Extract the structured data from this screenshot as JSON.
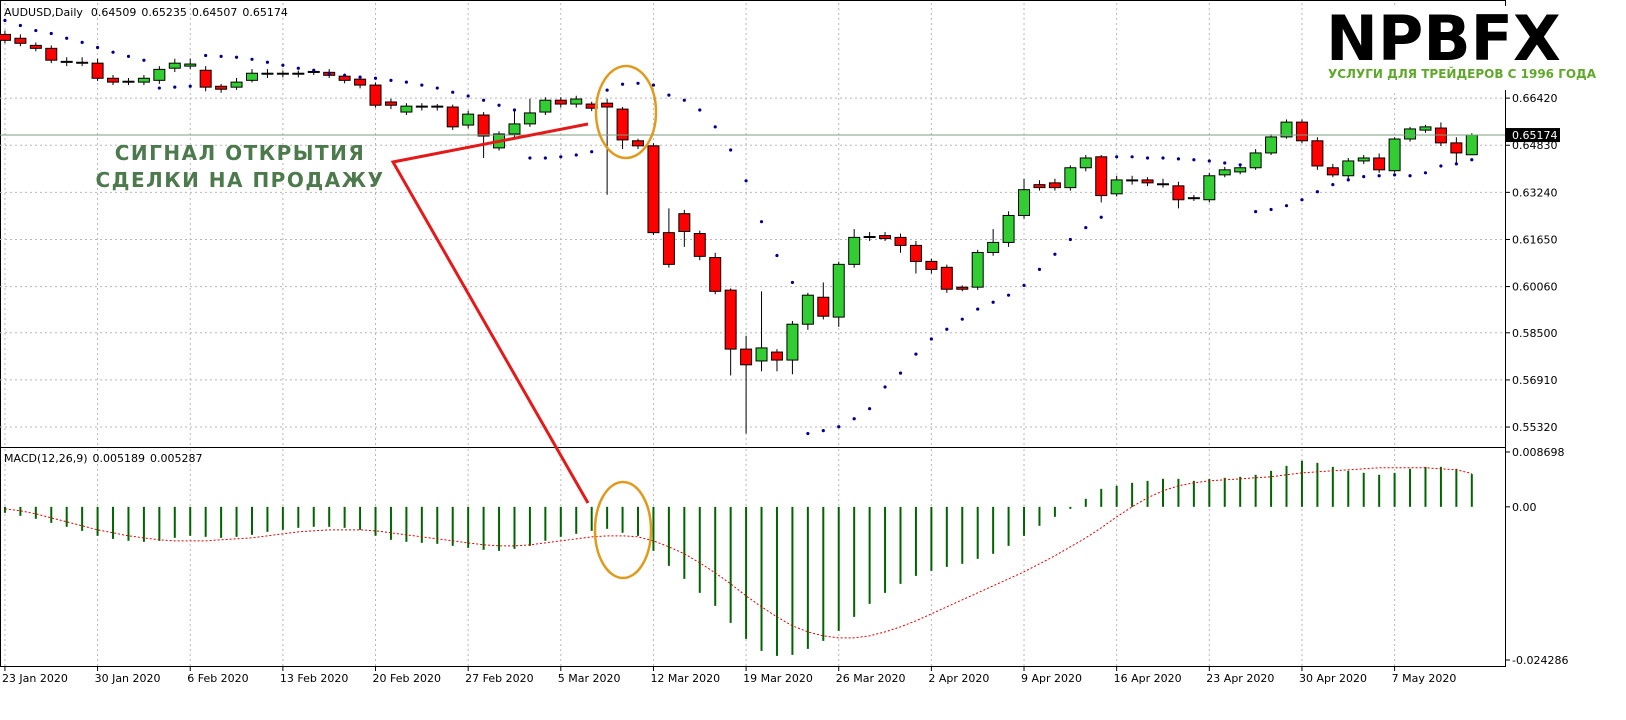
{
  "chart_data": [
    {
      "type": "candlestick",
      "title": "AUDUSD,Daily",
      "xlim": [
        -0.32,
        97.15
      ],
      "xticks": [
        {
          "value": 0,
          "label": "23 Jan 2020"
        },
        {
          "value": 6,
          "label": "30 Jan 2020"
        },
        {
          "value": 12,
          "label": "6 Feb 2020"
        },
        {
          "value": 18,
          "label": "13 Feb 2020"
        },
        {
          "value": 24,
          "label": "20 Feb 2020"
        },
        {
          "value": 30,
          "label": "27 Feb 2020"
        },
        {
          "value": 36,
          "label": "5 Mar 2020"
        },
        {
          "value": 42,
          "label": "12 Mar 2020"
        },
        {
          "value": 48,
          "label": "19 Mar 2020"
        },
        {
          "value": 54,
          "label": "26 Mar 2020"
        },
        {
          "value": 60,
          "label": "2 Apr 2020"
        },
        {
          "value": 66,
          "label": "9 Apr 2020"
        },
        {
          "value": 72,
          "label": "16 Apr 2020"
        },
        {
          "value": 78,
          "label": "23 Apr 2020"
        },
        {
          "value": 84,
          "label": "30 Apr 2020"
        },
        {
          "value": 90,
          "label": "7 May 2020"
        }
      ],
      "ylim": [
        0.5468,
        0.6963
      ],
      "yticks": [
        {
          "value": 0.6642,
          "label": "0.66420"
        },
        {
          "value": 0.6483,
          "label": "0.64830"
        },
        {
          "value": 0.6324,
          "label": "0.63240"
        },
        {
          "value": 0.6165,
          "label": "0.61650"
        },
        {
          "value": 0.6006,
          "label": "0.60060"
        },
        {
          "value": 0.585,
          "label": "0.58500"
        },
        {
          "value": 0.5691,
          "label": "0.56910"
        },
        {
          "value": 0.5532,
          "label": "0.55320"
        }
      ],
      "grid": true,
      "up_color": "#32cd32",
      "down_color": "#ff0000",
      "open": [
        0.6857,
        0.6844,
        0.682,
        0.681,
        0.6766,
        0.6763,
        0.676,
        0.6709,
        0.6696,
        0.6696,
        0.6702,
        0.6743,
        0.675,
        0.6736,
        0.6682,
        0.6679,
        0.6702,
        0.6723,
        0.6726,
        0.6723,
        0.6729,
        0.6729,
        0.6716,
        0.6706,
        0.6686,
        0.6629,
        0.6595,
        0.6615,
        0.6612,
        0.6612,
        0.6551,
        0.6585,
        0.6474,
        0.6521,
        0.6555,
        0.6595,
        0.6635,
        0.6622,
        0.6622,
        0.6625,
        0.6605,
        0.6498,
        0.6481,
        0.6188,
        0.6252,
        0.6185,
        0.6104,
        0.5994,
        0.5795,
        0.5755,
        0.5785,
        0.5758,
        0.5879,
        0.597,
        0.5903,
        0.6081,
        0.6172,
        0.6178,
        0.6172,
        0.6145,
        0.6091,
        0.6071,
        0.6004,
        0.6004,
        0.6121,
        0.6155,
        0.6246,
        0.635,
        0.6356,
        0.634,
        0.6407,
        0.6444,
        0.6319,
        0.6363,
        0.6366,
        0.635,
        0.6346,
        0.6303,
        0.6299,
        0.6383,
        0.6393,
        0.6407,
        0.6457,
        0.6511,
        0.6561,
        0.6498,
        0.6407,
        0.638,
        0.643,
        0.644,
        0.6397,
        0.6504,
        0.6534,
        0.6541,
        0.6491,
        0.64509
      ],
      "high": [
        0.687,
        0.6857,
        0.683,
        0.682,
        0.678,
        0.678,
        0.6775,
        0.672,
        0.671,
        0.672,
        0.675,
        0.6775,
        0.6775,
        0.675,
        0.669,
        0.671,
        0.674,
        0.674,
        0.6735,
        0.6735,
        0.674,
        0.674,
        0.6725,
        0.6715,
        0.6695,
        0.664,
        0.6625,
        0.6625,
        0.6622,
        0.662,
        0.66,
        0.6595,
        0.653,
        0.66,
        0.664,
        0.6645,
        0.6645,
        0.665,
        0.663,
        0.664,
        0.6612,
        0.6505,
        0.649,
        0.627,
        0.6265,
        0.6195,
        0.612,
        0.6,
        0.584,
        0.599,
        0.5795,
        0.589,
        0.5985,
        0.602,
        0.609,
        0.62,
        0.619,
        0.619,
        0.6185,
        0.616,
        0.61,
        0.608,
        0.601,
        0.613,
        0.62,
        0.626,
        0.637,
        0.6365,
        0.637,
        0.6415,
        0.645,
        0.645,
        0.638,
        0.638,
        0.6375,
        0.637,
        0.636,
        0.6315,
        0.639,
        0.641,
        0.6415,
        0.647,
        0.652,
        0.657,
        0.657,
        0.651,
        0.642,
        0.644,
        0.645,
        0.6455,
        0.651,
        0.6545,
        0.6552,
        0.656,
        0.651,
        0.65235
      ],
      "low": [
        0.6827,
        0.6817,
        0.68,
        0.676,
        0.675,
        0.675,
        0.67,
        0.6686,
        0.6686,
        0.6686,
        0.669,
        0.673,
        0.674,
        0.6665,
        0.666,
        0.667,
        0.6695,
        0.671,
        0.6712,
        0.6712,
        0.672,
        0.671,
        0.6692,
        0.6675,
        0.661,
        0.6605,
        0.6585,
        0.66,
        0.66,
        0.6535,
        0.654,
        0.644,
        0.6465,
        0.651,
        0.6545,
        0.6585,
        0.661,
        0.661,
        0.6598,
        0.6316,
        0.647,
        0.647,
        0.618,
        0.607,
        0.614,
        0.6095,
        0.598,
        0.5706,
        0.551,
        0.572,
        0.572,
        0.571,
        0.586,
        0.5895,
        0.587,
        0.607,
        0.616,
        0.616,
        0.612,
        0.605,
        0.605,
        0.5985,
        0.599,
        0.5995,
        0.611,
        0.614,
        0.6235,
        0.633,
        0.633,
        0.633,
        0.6395,
        0.629,
        0.631,
        0.635,
        0.6345,
        0.634,
        0.627,
        0.6295,
        0.629,
        0.6375,
        0.6385,
        0.64,
        0.645,
        0.6505,
        0.649,
        0.64,
        0.6375,
        0.637,
        0.642,
        0.639,
        0.639,
        0.6495,
        0.6525,
        0.648,
        0.642,
        0.64507
      ],
      "close": [
        0.6837,
        0.6827,
        0.681,
        0.677,
        0.6763,
        0.676,
        0.6709,
        0.6696,
        0.6699,
        0.6709,
        0.6739,
        0.676,
        0.6757,
        0.6679,
        0.6672,
        0.6696,
        0.6726,
        0.6726,
        0.6723,
        0.6726,
        0.6732,
        0.6719,
        0.6702,
        0.6686,
        0.6618,
        0.6618,
        0.6615,
        0.6612,
        0.6615,
        0.6545,
        0.6588,
        0.6514,
        0.6521,
        0.6555,
        0.6592,
        0.6635,
        0.6622,
        0.6639,
        0.6608,
        0.6612,
        0.6501,
        0.6481,
        0.6188,
        0.6081,
        0.6192,
        0.6108,
        0.599,
        0.5795,
        0.5742,
        0.5799,
        0.5758,
        0.5879,
        0.5977,
        0.5906,
        0.6081,
        0.6172,
        0.6175,
        0.6168,
        0.6145,
        0.6091,
        0.6064,
        0.5997,
        0.5997,
        0.6121,
        0.6155,
        0.6246,
        0.6333,
        0.634,
        0.634,
        0.6407,
        0.644,
        0.6313,
        0.6366,
        0.6366,
        0.6356,
        0.6353,
        0.6299,
        0.6306,
        0.638,
        0.64,
        0.6407,
        0.6457,
        0.6511,
        0.6561,
        0.6498,
        0.6413,
        0.6383,
        0.643,
        0.644,
        0.64,
        0.6504,
        0.6538,
        0.6545,
        0.6491,
        0.6457,
        0.65174
      ],
      "overlay": {
        "color": "#00008b",
        "values": [
          0.6904,
          0.6887,
          0.687,
          0.686,
          0.6844,
          0.683,
          0.6813,
          0.6797,
          0.6783,
          0.677,
          0.6676,
          0.6679,
          0.6682,
          0.6786,
          0.6783,
          0.678,
          0.6773,
          0.6763,
          0.6753,
          0.6743,
          0.6736,
          0.6726,
          0.6719,
          0.6713,
          0.6709,
          0.6702,
          0.6696,
          0.6686,
          0.6676,
          0.6662,
          0.6649,
          0.6635,
          0.6618,
          0.6602,
          0.644,
          0.644,
          0.6444,
          0.645,
          0.6461,
          0.6669,
          0.6689,
          0.6692,
          0.6686,
          0.6652,
          0.6635,
          0.6602,
          0.6545,
          0.6467,
          0.6363,
          0.6225,
          0.6111,
          0.602,
          0.551,
          0.552,
          0.5533,
          0.556,
          0.5594,
          0.5667,
          0.5714,
          0.5778,
          0.5829,
          0.5862,
          0.5896,
          0.593,
          0.5953,
          0.5977,
          0.601,
          0.6064,
          0.6115,
          0.6165,
          0.6205,
          0.624,
          0.6444,
          0.6444,
          0.644,
          0.644,
          0.6437,
          0.6434,
          0.643,
          0.6423,
          0.6417,
          0.6259,
          0.6266,
          0.6279,
          0.6299,
          0.6326,
          0.635,
          0.6366,
          0.6377,
          0.638,
          0.6383,
          0.638,
          0.639,
          0.6413,
          0.642,
          0.6434
        ]
      }
    },
    {
      "type": "macd",
      "title": "MACD(12,26,9)",
      "xlim": [
        -0.32,
        97.15
      ],
      "ylim": [
        -0.02524,
        0.00917
      ],
      "yticks": [
        0.008698,
        {
          "value": 0,
          "label": "0.00"
        },
        -0.024286
      ],
      "series": [
        {
          "color": "#006400",
          "values": [
            -0.00095,
            -0.00143,
            -0.0019,
            -0.00254,
            -0.00317,
            -0.00381,
            -0.0046,
            -0.00508,
            -0.00539,
            -0.00555,
            -0.00539,
            -0.00492,
            -0.0046,
            -0.00476,
            -0.00492,
            -0.00476,
            -0.00444,
            -0.00397,
            -0.00365,
            -0.00333,
            -0.00317,
            -0.00317,
            -0.00333,
            -0.00365,
            -0.0046,
            -0.00523,
            -0.00555,
            -0.00571,
            -0.00587,
            -0.00619,
            -0.0065,
            -0.00682,
            -0.00698,
            -0.00666,
            -0.00619,
            -0.00539,
            -0.00476,
            -0.00428,
            -0.00381,
            -0.00349,
            -0.00412,
            -0.0046,
            -0.00698,
            -0.00936,
            -0.01142,
            -0.01364,
            -0.0157,
            -0.0184,
            -0.02094,
            -0.02284,
            -0.02363,
            -0.02347,
            -0.02252,
            -0.02125,
            -0.01967,
            -0.01745,
            -0.01538,
            -0.01364,
            -0.01221,
            -0.01094,
            -0.01015,
            -0.00952,
            -0.00904,
            -0.00825,
            -0.00745,
            -0.00619,
            -0.0046,
            -0.00301,
            -0.00159,
            -0.00032,
            0.00127,
            0.00285,
            0.00333,
            0.00381,
            0.00412,
            0.00444,
            0.00444,
            0.00412,
            0.00444,
            0.0046,
            0.00476,
            0.00508,
            0.00571,
            0.0065,
            0.0073,
            0.00698,
            0.00634,
            0.00571,
            0.00539,
            0.00508,
            0.00539,
            0.00603,
            0.00634,
            0.00634,
            0.00603,
            0.005189
          ]
        },
        {
          "color": "#e00000",
          "values": [
            -0.00032,
            -0.00063,
            -0.00111,
            -0.00174,
            -0.00238,
            -0.00301,
            -0.00365,
            -0.00412,
            -0.0046,
            -0.00492,
            -0.00523,
            -0.00539,
            -0.00539,
            -0.00539,
            -0.00523,
            -0.00508,
            -0.00492,
            -0.0046,
            -0.00428,
            -0.00397,
            -0.00381,
            -0.00365,
            -0.00365,
            -0.00365,
            -0.00381,
            -0.00412,
            -0.00444,
            -0.00476,
            -0.00508,
            -0.00539,
            -0.00571,
            -0.00603,
            -0.00619,
            -0.00619,
            -0.00603,
            -0.00571,
            -0.00539,
            -0.00508,
            -0.00476,
            -0.0046,
            -0.0046,
            -0.00476,
            -0.00539,
            -0.00634,
            -0.00745,
            -0.00888,
            -0.01047,
            -0.01221,
            -0.01412,
            -0.01586,
            -0.01745,
            -0.01887,
            -0.01983,
            -0.02046,
            -0.02078,
            -0.02078,
            -0.02046,
            -0.01983,
            -0.01903,
            -0.01808,
            -0.01697,
            -0.01586,
            -0.01475,
            -0.01364,
            -0.01253,
            -0.01142,
            -0.01031,
            -0.00904,
            -0.00777,
            -0.00634,
            -0.00492,
            -0.00333,
            -0.00159,
            0,
            0.00143,
            0.00254,
            0.00333,
            0.00381,
            0.00412,
            0.00428,
            0.00444,
            0.0046,
            0.00476,
            0.00508,
            0.00539,
            0.00555,
            0.00571,
            0.00587,
            0.00603,
            0.00619,
            0.00619,
            0.00619,
            0.00619,
            0.00603,
            0.00587,
            0.005287
          ]
        }
      ]
    }
  ],
  "annotation": {
    "lines": [
      "СИГНАЛ ОТКРЫТИЯ",
      "СДЕЛКИ НА ПРОДАЖУ"
    ]
  },
  "logo": {
    "name": "NPBFX",
    "tagline": "УСЛУГИ ДЛЯ ТРЕЙДЕРОВ С 1996 ГОДА"
  }
}
